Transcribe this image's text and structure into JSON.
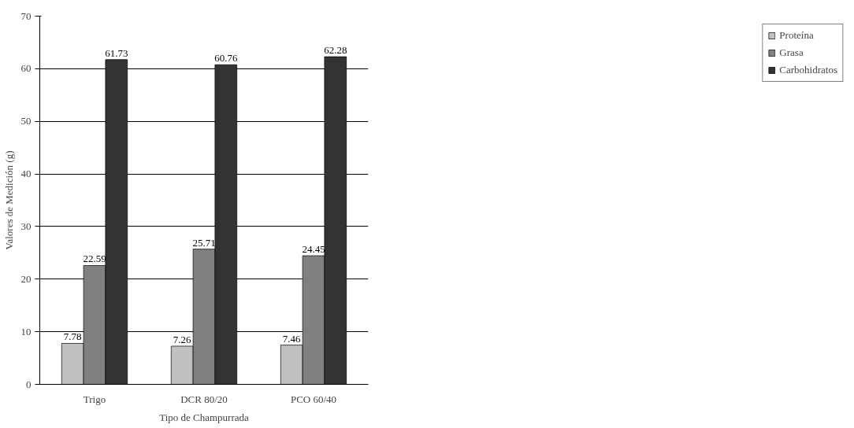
{
  "chart_data": {
    "type": "bar",
    "xlabel": "Tipo de Champurrada",
    "ylabel": "Valores de Medición (g)",
    "categories": [
      "Trigo",
      "DCR 80/20",
      "PCO 60/40"
    ],
    "series": [
      {
        "name": "Proteína",
        "color": "#c0c0c0",
        "values": [
          7.78,
          7.26,
          7.46
        ]
      },
      {
        "name": "Grasa",
        "color": "#808080",
        "values": [
          22.59,
          25.71,
          24.45
        ]
      },
      {
        "name": "Carbohidratos",
        "color": "#333333",
        "values": [
          61.73,
          60.76,
          62.28
        ]
      }
    ],
    "ylim": [
      0,
      70
    ],
    "yticks": [
      0,
      10,
      20,
      30,
      40,
      50,
      60,
      70
    ],
    "grid": "y",
    "legend": "right",
    "data_labels": true
  }
}
